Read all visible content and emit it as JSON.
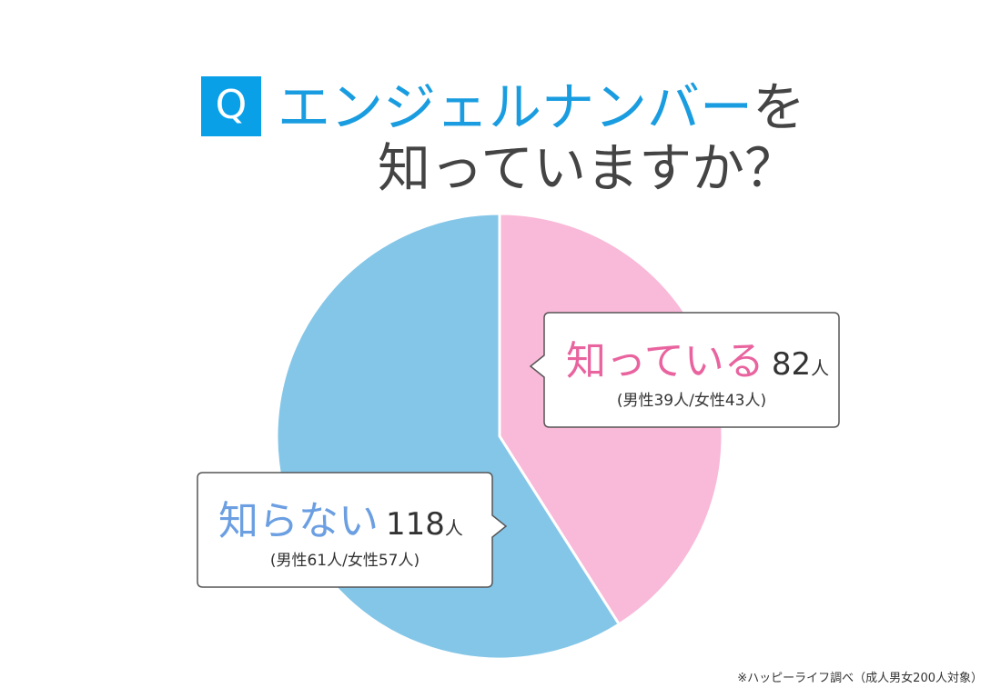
{
  "chart_data": {
    "type": "pie",
    "q_label": "Q",
    "title_parts": [
      {
        "text": "エンジェルナンバー",
        "color": "#1a9de0"
      },
      {
        "text": "を",
        "color": "#444444"
      }
    ],
    "title_line2": "知っていますか？",
    "categories": [
      "知っている",
      "知らない"
    ],
    "values": [
      82,
      118
    ],
    "unit": "人",
    "colors": [
      "#f9b9d8",
      "#84c6e8"
    ],
    "label_colors": [
      "#e9649f",
      "#6b9fe2"
    ],
    "notes": [
      "(男性39人/女性43人)",
      "(男性61人/女性57人)"
    ],
    "source": "※ハッピーライフ調べ（成人男女200人対象）"
  }
}
